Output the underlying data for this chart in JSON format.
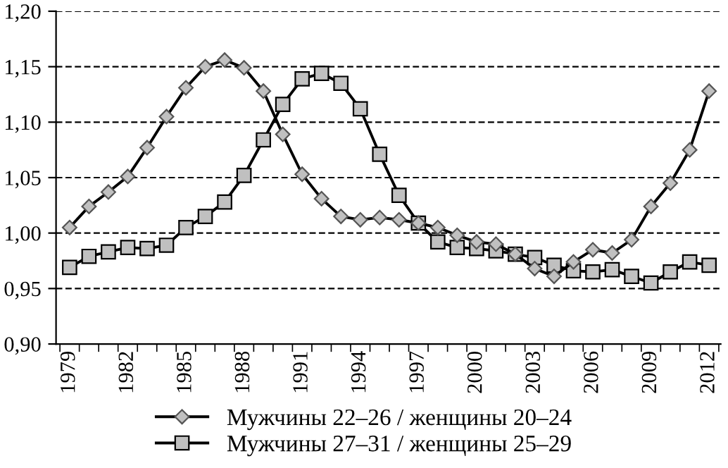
{
  "chart_data": {
    "type": "line",
    "categories": [
      "1979",
      null,
      null,
      "1982",
      null,
      null,
      "1985",
      null,
      null,
      "1988",
      null,
      null,
      "1991",
      null,
      null,
      "1994",
      null,
      null,
      "1997",
      null,
      null,
      "2000",
      null,
      null,
      "2003",
      null,
      null,
      "2006",
      null,
      null,
      "2009",
      null,
      null,
      "2012"
    ],
    "series": [
      {
        "name": "Мужчины 22–26 / женщины 20–24",
        "color": "#000000",
        "marker": "diamond",
        "values": [
          1.005,
          1.024,
          1.037,
          1.051,
          1.077,
          1.105,
          1.131,
          1.15,
          1.156,
          1.149,
          1.128,
          1.089,
          1.053,
          1.031,
          1.015,
          1.012,
          1.014,
          1.012,
          1.009,
          1.005,
          0.998,
          0.992,
          0.99,
          0.981,
          0.968,
          0.961,
          0.974,
          0.985,
          0.982,
          0.994,
          1.024,
          1.045,
          1.075,
          1.128
        ]
      },
      {
        "name": "Мужчины 27–31 / женщины 25–29",
        "color": "#000000",
        "marker": "square",
        "values": [
          0.969,
          0.979,
          0.983,
          0.987,
          0.986,
          0.989,
          1.005,
          1.015,
          1.028,
          1.052,
          1.084,
          1.116,
          1.139,
          1.144,
          1.135,
          1.112,
          1.071,
          1.034,
          1.009,
          0.992,
          0.987,
          0.986,
          0.984,
          0.981,
          0.978,
          0.971,
          0.966,
          0.965,
          0.967,
          0.961,
          0.955,
          0.965,
          0.974,
          0.971
        ]
      }
    ],
    "ylim": [
      0.9,
      1.2
    ],
    "yticks": [
      {
        "value": 0.9,
        "label": "0,90"
      },
      {
        "value": 0.95,
        "label": "0,95"
      },
      {
        "value": 1.0,
        "label": "1,00"
      },
      {
        "value": 1.05,
        "label": "1,05"
      },
      {
        "value": 1.1,
        "label": "1,10"
      },
      {
        "value": 1.15,
        "label": "1,15"
      },
      {
        "value": 1.2,
        "label": "1,20"
      }
    ],
    "grid": "y",
    "legend": "bottom",
    "line_style": "solid"
  }
}
